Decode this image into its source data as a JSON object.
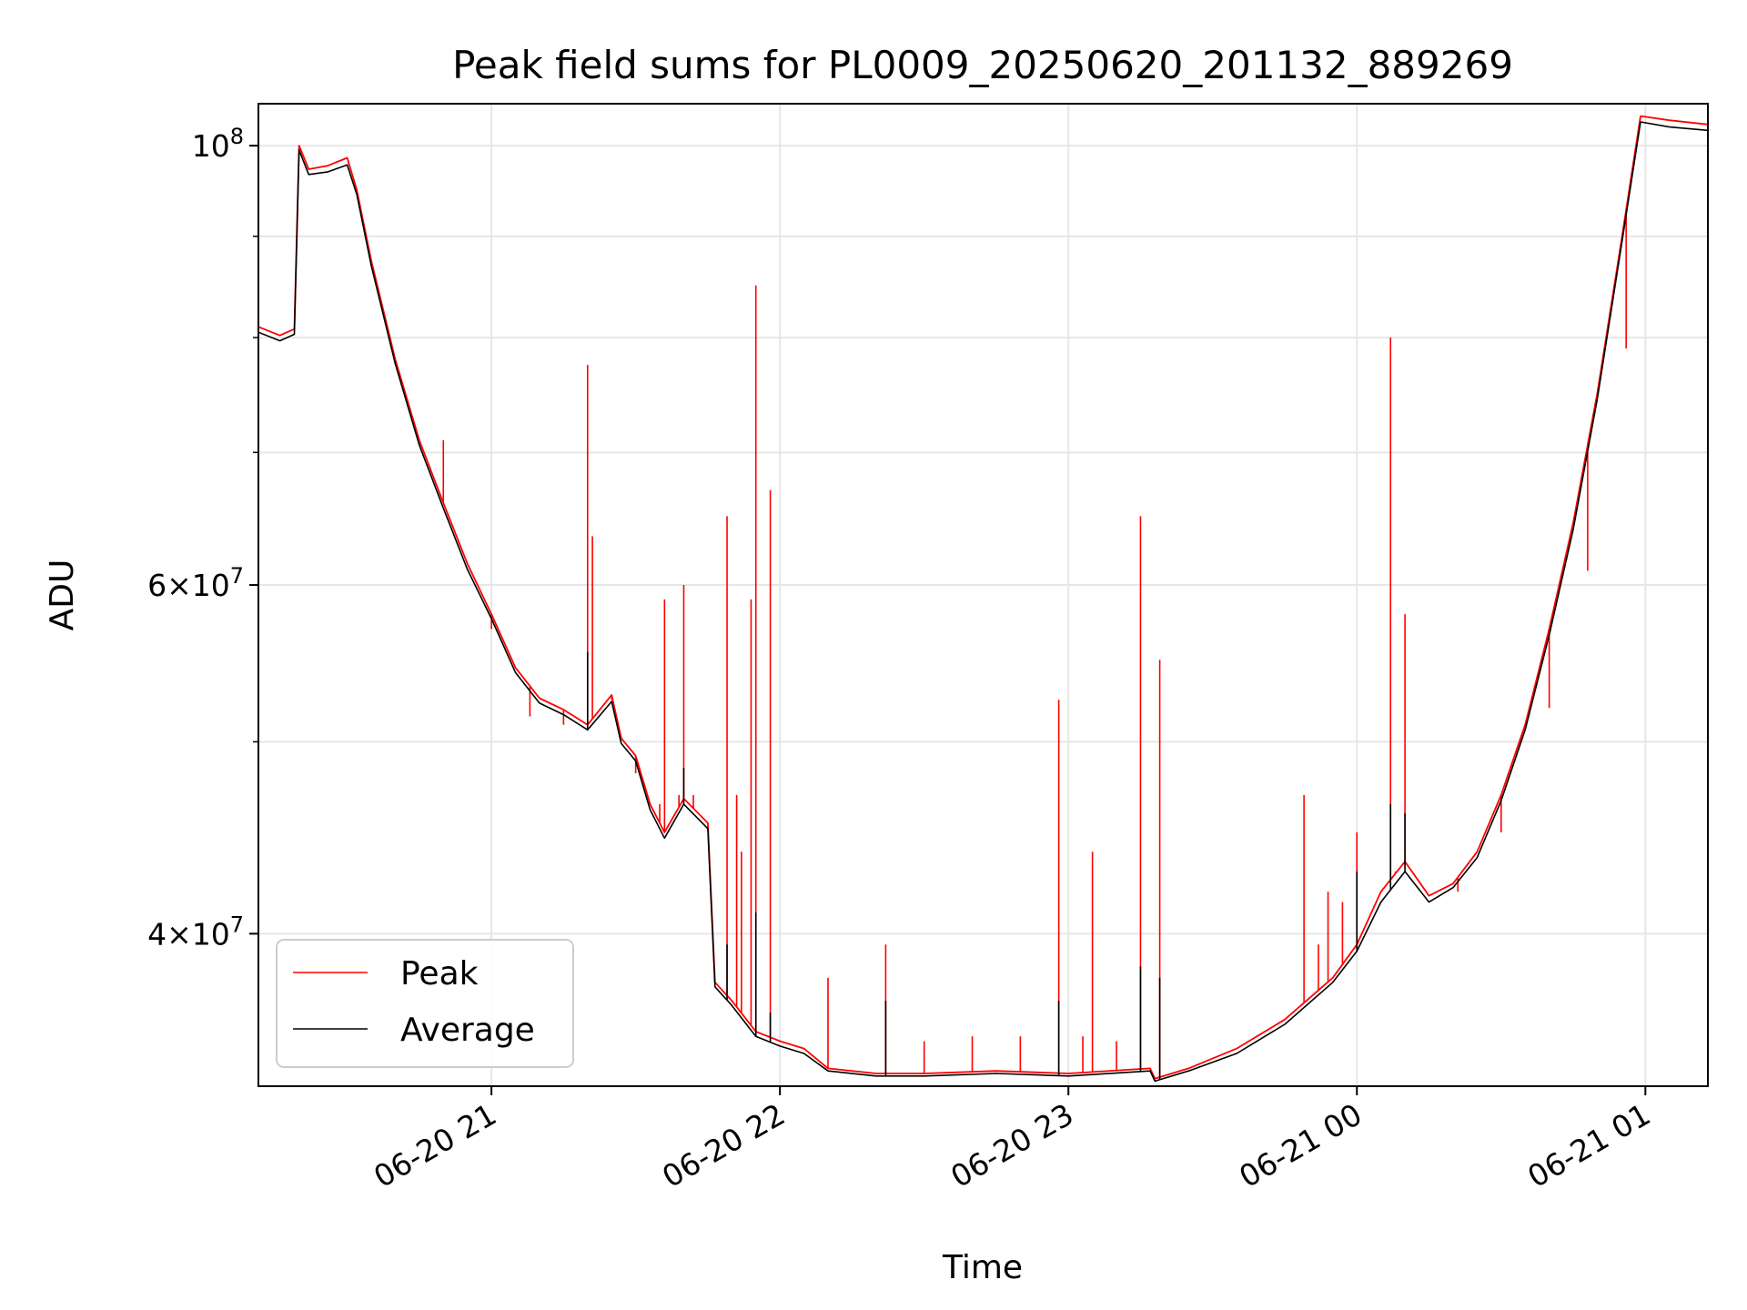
{
  "chart_data": {
    "type": "line",
    "title": "Peak field sums for PL0009_20250620_201132_889269",
    "xlabel": "Time",
    "ylabel": "ADU",
    "y_scale": "log",
    "ylim": [
      33500000,
      105000000
    ],
    "xlim": [
      "2025-06-20 20:11:32",
      "2025-06-21 01:13:00"
    ],
    "grid": true,
    "legend_position": "lower-left",
    "x_ticks": [
      {
        "value": "2025-06-20 21:00",
        "label": "06-20 21"
      },
      {
        "value": "2025-06-20 22:00",
        "label": "06-20 22"
      },
      {
        "value": "2025-06-20 23:00",
        "label": "06-20 23"
      },
      {
        "value": "2025-06-21 00:00",
        "label": "06-21 00"
      },
      {
        "value": "2025-06-21 01:00",
        "label": "06-21 01"
      }
    ],
    "y_ticks": [
      {
        "value": 100000000,
        "mantissa": "",
        "exponent": "8",
        "base": "10"
      },
      {
        "value": 60000000,
        "mantissa": "6",
        "exponent": "7",
        "base": "10"
      },
      {
        "value": 40000000,
        "mantissa": "4",
        "exponent": "7",
        "base": "10"
      }
    ],
    "y_minor_ticks": [
      90000000,
      80000000,
      70000000,
      50000000
    ],
    "series": [
      {
        "name": "Peak",
        "color": "#ff0000",
        "points": [
          [
            "2025-06-20 20:11:32",
            81000000
          ],
          [
            "2025-06-20 20:16:00",
            80200000
          ],
          [
            "2025-06-20 20:19:00",
            80800000
          ],
          [
            "2025-06-20 20:20:00",
            100000000
          ],
          [
            "2025-06-20 20:22:00",
            97300000
          ],
          [
            "2025-06-20 20:26:00",
            97700000
          ],
          [
            "2025-06-20 20:30:00",
            98600000
          ],
          [
            "2025-06-20 20:32:00",
            95000000
          ],
          [
            "2025-06-20 20:35:00",
            87500000
          ],
          [
            "2025-06-20 20:40:00",
            78000000
          ],
          [
            "2025-06-20 20:45:00",
            71000000
          ],
          [
            "2025-06-20 20:50:00",
            66000000
          ],
          [
            "2025-06-20 20:55:00",
            61500000
          ],
          [
            "2025-06-20 21:00:00",
            58000000
          ],
          [
            "2025-06-20 21:05:00",
            54500000
          ],
          [
            "2025-06-20 21:10:00",
            52600000
          ],
          [
            "2025-06-20 21:15:00",
            51900000
          ],
          [
            "2025-06-20 21:20:00",
            51000000
          ],
          [
            "2025-06-20 21:25:00",
            52800000
          ],
          [
            "2025-06-20 21:27:00",
            50200000
          ],
          [
            "2025-06-20 21:30:00",
            49200000
          ],
          [
            "2025-06-20 21:33:00",
            46500000
          ],
          [
            "2025-06-20 21:36:00",
            45000000
          ],
          [
            "2025-06-20 21:40:00",
            46800000
          ],
          [
            "2025-06-20 21:45:00",
            45500000
          ],
          [
            "2025-06-20 21:46:30",
            37800000
          ],
          [
            "2025-06-20 21:50:00",
            37000000
          ],
          [
            "2025-06-20 21:55:00",
            35700000
          ],
          [
            "2025-06-20 22:00:00",
            35300000
          ],
          [
            "2025-06-20 22:05:00",
            35000000
          ],
          [
            "2025-06-20 22:10:00",
            34200000
          ],
          [
            "2025-06-20 22:20:00",
            34000000
          ],
          [
            "2025-06-20 22:30:00",
            34000000
          ],
          [
            "2025-06-20 22:45:00",
            34100000
          ],
          [
            "2025-06-20 23:00:00",
            34000000
          ],
          [
            "2025-06-20 23:17:00",
            34200000
          ],
          [
            "2025-06-20 23:18:00",
            33800000
          ],
          [
            "2025-06-20 23:25:00",
            34200000
          ],
          [
            "2025-06-20 23:35:00",
            35000000
          ],
          [
            "2025-06-20 23:45:00",
            36200000
          ],
          [
            "2025-06-20 23:55:00",
            38000000
          ],
          [
            "2025-06-21 00:00:00",
            39500000
          ],
          [
            "2025-06-21 00:05:00",
            42000000
          ],
          [
            "2025-06-21 00:10:00",
            43500000
          ],
          [
            "2025-06-21 00:15:00",
            41800000
          ],
          [
            "2025-06-21 00:20:00",
            42400000
          ],
          [
            "2025-06-21 00:25:00",
            44000000
          ],
          [
            "2025-06-21 00:30:00",
            47000000
          ],
          [
            "2025-06-21 00:35:00",
            51000000
          ],
          [
            "2025-06-21 00:40:00",
            57000000
          ],
          [
            "2025-06-21 00:45:00",
            64500000
          ],
          [
            "2025-06-21 00:50:00",
            75000000
          ],
          [
            "2025-06-21 00:55:00",
            89500000
          ],
          [
            "2025-06-21 00:59:00",
            103500000
          ],
          [
            "2025-06-21 01:05:00",
            103000000
          ],
          [
            "2025-06-21 01:13:00",
            102500000
          ]
        ],
        "spikes": [
          [
            "2025-06-20 21:40:00",
            60000000
          ],
          [
            "2025-06-20 21:49:00",
            65000000
          ],
          [
            "2025-06-20 21:55:00",
            85000000
          ],
          [
            "2025-06-20 21:58:00",
            67000000
          ],
          [
            "2025-06-20 22:10:00",
            38000000
          ],
          [
            "2025-06-20 23:15:00",
            65000000
          ],
          [
            "2025-06-20 22:58:00",
            52500000
          ],
          [
            "2025-06-20 21:42:00",
            47000000
          ],
          [
            "2025-06-21 00:00:00",
            45000000
          ],
          [
            "2025-06-20 21:20:00",
            77500000
          ],
          [
            "2025-06-20 21:00:00",
            57000000
          ],
          [
            "2025-06-20 21:21:00",
            63500000
          ],
          [
            "2025-06-20 21:36:00",
            59000000
          ],
          [
            "2025-06-20 21:54:00",
            59000000
          ],
          [
            "2025-06-21 00:10:00",
            58000000
          ],
          [
            "2025-06-20 20:50:00",
            71000000
          ],
          [
            "2025-06-20 21:51:00",
            47000000
          ],
          [
            "2025-06-20 21:52:00",
            44000000
          ],
          [
            "2025-06-20 23:19:00",
            55000000
          ],
          [
            "2025-06-20 23:49:00",
            47000000
          ],
          [
            "2025-06-20 23:54:00",
            42000000
          ],
          [
            "2025-06-20 22:22:00",
            39500000
          ],
          [
            "2025-06-21 00:07:00",
            80000000
          ],
          [
            "2025-06-21 00:08:00",
            43000000
          ],
          [
            "2025-06-20 23:03:00",
            35500000
          ],
          [
            "2025-06-20 23:05:00",
            44000000
          ],
          [
            "2025-06-20 21:30:00",
            48200000
          ],
          [
            "2025-06-20 21:35:00",
            46500000
          ],
          [
            "2025-06-20 21:39:00",
            47000000
          ],
          [
            "2025-06-20 21:15:00",
            51000000
          ],
          [
            "2025-06-20 21:25:00",
            52500000
          ],
          [
            "2025-06-20 21:08:00",
            51500000
          ],
          [
            "2025-06-20 23:57:00",
            41500000
          ],
          [
            "2025-06-20 23:52:00",
            39500000
          ],
          [
            "2025-06-20 22:30:00",
            35300000
          ],
          [
            "2025-06-20 22:40:00",
            35500000
          ],
          [
            "2025-06-20 22:50:00",
            35500000
          ],
          [
            "2025-06-20 23:10:00",
            35300000
          ],
          [
            "2025-06-21 00:21:00",
            42000000
          ],
          [
            "2025-06-21 00:56:00",
            79000000
          ],
          [
            "2025-06-21 00:48:00",
            61000000
          ],
          [
            "2025-06-21 00:40:00",
            52000000
          ],
          [
            "2025-06-21 00:30:00",
            45000000
          ]
        ]
      },
      {
        "name": "Average",
        "color": "#000000",
        "points": [
          [
            "2025-06-20 20:11:32",
            80500000
          ],
          [
            "2025-06-20 20:16:00",
            79700000
          ],
          [
            "2025-06-20 20:19:00",
            80300000
          ],
          [
            "2025-06-20 20:20:00",
            99500000
          ],
          [
            "2025-06-20 20:22:00",
            96700000
          ],
          [
            "2025-06-20 20:26:00",
            97000000
          ],
          [
            "2025-06-20 20:30:00",
            97800000
          ],
          [
            "2025-06-20 20:32:00",
            94500000
          ],
          [
            "2025-06-20 20:35:00",
            87000000
          ],
          [
            "2025-06-20 20:40:00",
            77600000
          ],
          [
            "2025-06-20 20:45:00",
            70600000
          ],
          [
            "2025-06-20 20:50:00",
            65600000
          ],
          [
            "2025-06-20 20:55:00",
            61100000
          ],
          [
            "2025-06-20 21:00:00",
            57700000
          ],
          [
            "2025-06-20 21:05:00",
            54200000
          ],
          [
            "2025-06-20 21:10:00",
            52300000
          ],
          [
            "2025-06-20 21:15:00",
            51600000
          ],
          [
            "2025-06-20 21:20:00",
            50700000
          ],
          [
            "2025-06-20 21:25:00",
            52400000
          ],
          [
            "2025-06-20 21:27:00",
            49900000
          ],
          [
            "2025-06-20 21:30:00",
            48900000
          ],
          [
            "2025-06-20 21:33:00",
            46200000
          ],
          [
            "2025-06-20 21:36:00",
            44700000
          ],
          [
            "2025-06-20 21:40:00",
            46500000
          ],
          [
            "2025-06-20 21:45:00",
            45200000
          ],
          [
            "2025-06-20 21:46:30",
            37600000
          ],
          [
            "2025-06-20 21:50:00",
            36800000
          ],
          [
            "2025-06-20 21:55:00",
            35500000
          ],
          [
            "2025-06-20 22:00:00",
            35100000
          ],
          [
            "2025-06-20 22:05:00",
            34800000
          ],
          [
            "2025-06-20 22:10:00",
            34100000
          ],
          [
            "2025-06-20 22:20:00",
            33900000
          ],
          [
            "2025-06-20 22:30:00",
            33900000
          ],
          [
            "2025-06-20 22:45:00",
            34000000
          ],
          [
            "2025-06-20 23:00:00",
            33900000
          ],
          [
            "2025-06-20 23:17:00",
            34100000
          ],
          [
            "2025-06-20 23:18:00",
            33700000
          ],
          [
            "2025-06-20 23:25:00",
            34100000
          ],
          [
            "2025-06-20 23:35:00",
            34800000
          ],
          [
            "2025-06-20 23:45:00",
            36000000
          ],
          [
            "2025-06-20 23:55:00",
            37800000
          ],
          [
            "2025-06-21 00:00:00",
            39200000
          ],
          [
            "2025-06-21 00:05:00",
            41500000
          ],
          [
            "2025-06-21 00:10:00",
            43000000
          ],
          [
            "2025-06-21 00:15:00",
            41500000
          ],
          [
            "2025-06-21 00:20:00",
            42200000
          ],
          [
            "2025-06-21 00:25:00",
            43700000
          ],
          [
            "2025-06-21 00:30:00",
            46700000
          ],
          [
            "2025-06-21 00:35:00",
            50700000
          ],
          [
            "2025-06-21 00:40:00",
            56600000
          ],
          [
            "2025-06-21 00:45:00",
            64000000
          ],
          [
            "2025-06-21 00:50:00",
            74500000
          ],
          [
            "2025-06-21 00:55:00",
            89000000
          ],
          [
            "2025-06-21 00:59:00",
            102800000
          ],
          [
            "2025-06-21 01:05:00",
            102200000
          ],
          [
            "2025-06-21 01:13:00",
            101800000
          ]
        ],
        "spikes": [
          [
            "2025-06-20 21:20:00",
            55500000
          ],
          [
            "2025-06-20 21:55:00",
            41000000
          ],
          [
            "2025-06-21 00:07:00",
            46500000
          ],
          [
            "2025-06-21 00:00:00",
            43000000
          ],
          [
            "2025-06-20 23:15:00",
            38500000
          ],
          [
            "2025-06-20 23:19:00",
            38000000
          ],
          [
            "2025-06-20 22:58:00",
            37000000
          ],
          [
            "2025-06-20 21:40:00",
            48500000
          ],
          [
            "2025-06-20 21:49:00",
            39500000
          ],
          [
            "2025-06-20 22:22:00",
            37000000
          ],
          [
            "2025-06-20 21:58:00",
            36500000
          ],
          [
            "2025-06-21 00:10:00",
            46000000
          ]
        ]
      }
    ]
  }
}
